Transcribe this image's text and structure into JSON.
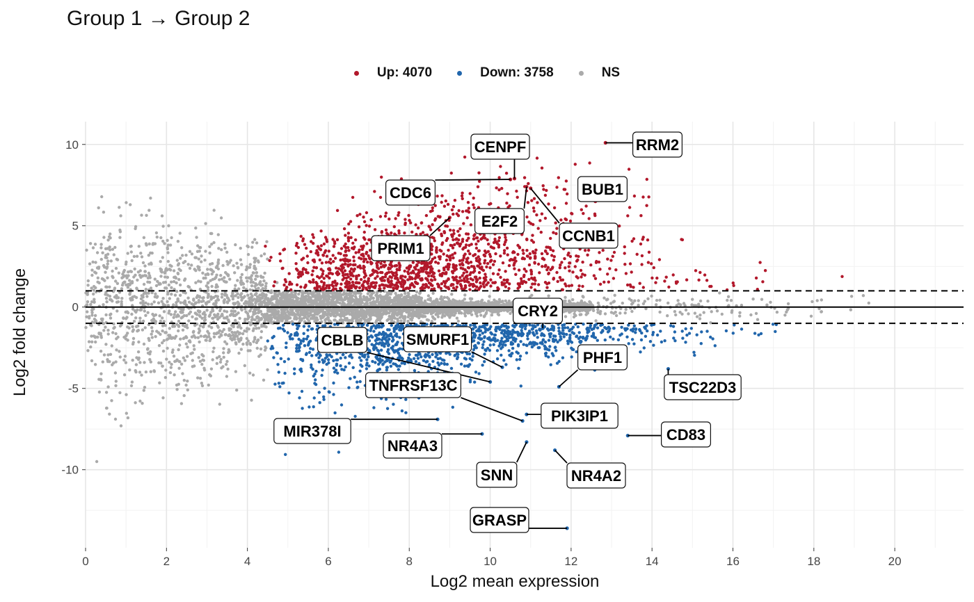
{
  "chart_data": {
    "type": "scatter",
    "title": "Group 1 → Group 2",
    "xlabel": "Log2 mean expression",
    "ylabel": "Log2 fold change",
    "xlim": [
      0,
      21.7
    ],
    "ylim": [
      -14.8,
      11.4
    ],
    "xticks": [
      0,
      2,
      4,
      6,
      8,
      10,
      12,
      14,
      16,
      18,
      20
    ],
    "yticks": [
      -10,
      -5,
      0,
      5,
      10
    ],
    "grid": true,
    "legend_position": "top",
    "hlines": [
      {
        "y": 0,
        "style": "solid"
      },
      {
        "y": 1,
        "style": "dashed"
      },
      {
        "y": -1,
        "style": "dashed"
      }
    ],
    "series": [
      {
        "name": "Up: 4070",
        "color": "#b2182b",
        "count": 4070
      },
      {
        "name": "Down: 3758",
        "color": "#2166ac",
        "count": 3758
      },
      {
        "name": "NS",
        "color": "#aaaaaa"
      }
    ],
    "labeled_genes": [
      {
        "gene": "RRM2",
        "x": 12.85,
        "y": 10.1,
        "direction": "up"
      },
      {
        "gene": "CENPF",
        "x": 10.6,
        "y": 7.9,
        "direction": "up"
      },
      {
        "gene": "CDC6",
        "x": 10.5,
        "y": 7.85,
        "direction": "up"
      },
      {
        "gene": "BUB1",
        "x": 12.6,
        "y": 6.5,
        "direction": "up"
      },
      {
        "gene": "E2F2",
        "x": 10.9,
        "y": 7.4,
        "direction": "up"
      },
      {
        "gene": "CCNB1",
        "x": 11.0,
        "y": 7.3,
        "direction": "up"
      },
      {
        "gene": "PRIM1",
        "x": 9.0,
        "y": 5.5,
        "direction": "up"
      },
      {
        "gene": "CRY2",
        "x": 11.3,
        "y": -1.3,
        "direction": "down"
      },
      {
        "gene": "CBLB",
        "x": 10.0,
        "y": -4.6,
        "direction": "down"
      },
      {
        "gene": "SMURF1",
        "x": 10.3,
        "y": -3.7,
        "direction": "down"
      },
      {
        "gene": "PHF1",
        "x": 11.7,
        "y": -4.9,
        "direction": "down"
      },
      {
        "gene": "TSC22D3",
        "x": 14.4,
        "y": -3.8,
        "direction": "down"
      },
      {
        "gene": "TNFRSF13C",
        "x": 10.8,
        "y": -7.0,
        "direction": "down"
      },
      {
        "gene": "PIK3IP1",
        "x": 10.9,
        "y": -6.6,
        "direction": "down"
      },
      {
        "gene": "MIR378I",
        "x": 8.7,
        "y": -6.9,
        "direction": "down"
      },
      {
        "gene": "CD83",
        "x": 13.4,
        "y": -7.9,
        "direction": "down"
      },
      {
        "gene": "NR4A3",
        "x": 9.8,
        "y": -7.8,
        "direction": "down"
      },
      {
        "gene": "SNN",
        "x": 10.9,
        "y": -8.3,
        "direction": "down"
      },
      {
        "gene": "NR4A2",
        "x": 11.6,
        "y": -8.8,
        "direction": "down"
      },
      {
        "gene": "GRASP",
        "x": 11.9,
        "y": -13.6,
        "direction": "down"
      }
    ]
  }
}
